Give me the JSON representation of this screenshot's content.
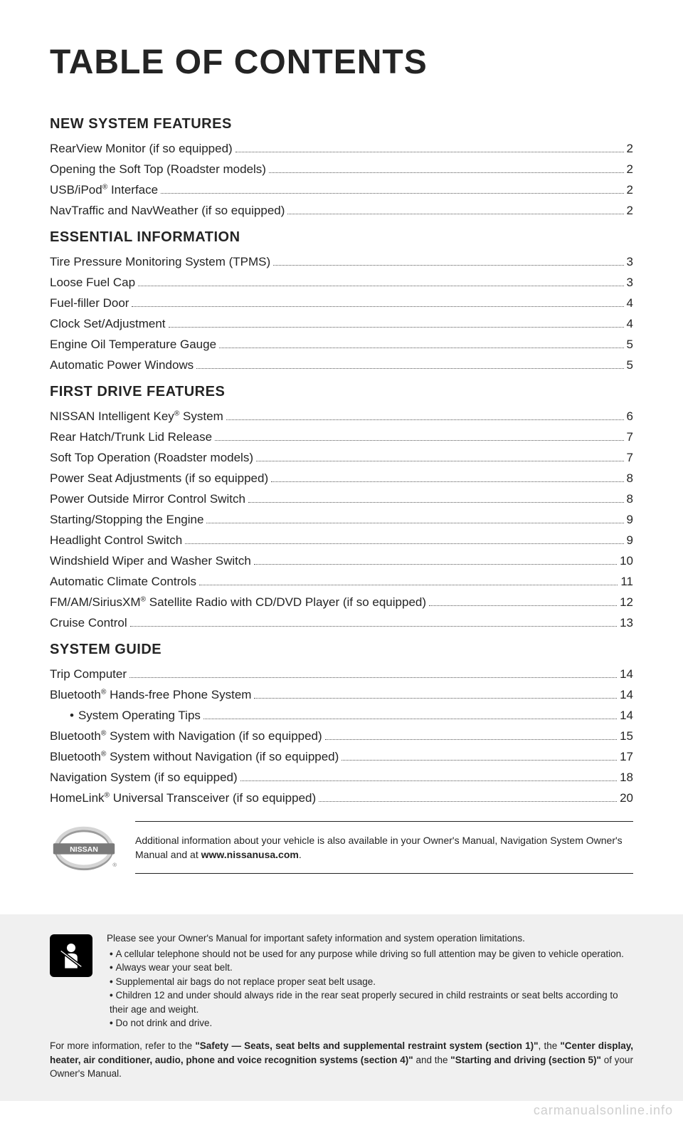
{
  "title": "TABLE OF CONTENTS",
  "sections": [
    {
      "heading": "NEW SYSTEM FEATURES",
      "entries": [
        {
          "label": "RearView Monitor (if so equipped)",
          "page": "2",
          "sub": false,
          "reg": false
        },
        {
          "label": "Opening the Soft Top (Roadster models)",
          "page": "2",
          "sub": false,
          "reg": false
        },
        {
          "label": "USB/iPod® Interface",
          "page": "2",
          "sub": false,
          "reg": true
        },
        {
          "label": "NavTraffic and NavWeather (if so equipped)",
          "page": "2",
          "sub": false,
          "reg": false
        }
      ]
    },
    {
      "heading": "ESSENTIAL INFORMATION",
      "entries": [
        {
          "label": "Tire Pressure Monitoring System (TPMS)",
          "page": "3",
          "sub": false,
          "reg": false
        },
        {
          "label": "Loose Fuel Cap",
          "page": "3",
          "sub": false,
          "reg": false
        },
        {
          "label": "Fuel-filler Door",
          "page": "4",
          "sub": false,
          "reg": false
        },
        {
          "label": "Clock Set/Adjustment",
          "page": "4",
          "sub": false,
          "reg": false
        },
        {
          "label": "Engine Oil Temperature Gauge",
          "page": "5",
          "sub": false,
          "reg": false
        },
        {
          "label": "Automatic Power Windows",
          "page": "5",
          "sub": false,
          "reg": false
        }
      ]
    },
    {
      "heading": "FIRST DRIVE FEATURES",
      "entries": [
        {
          "label": "NISSAN Intelligent Key® System",
          "page": "6",
          "sub": false,
          "reg": true
        },
        {
          "label": "Rear Hatch/Trunk Lid Release",
          "page": "7",
          "sub": false,
          "reg": false
        },
        {
          "label": "Soft Top Operation (Roadster models)",
          "page": "7",
          "sub": false,
          "reg": false
        },
        {
          "label": "Power Seat Adjustments (if so equipped)",
          "page": "8",
          "sub": false,
          "reg": false
        },
        {
          "label": "Power Outside Mirror Control Switch",
          "page": "8",
          "sub": false,
          "reg": false
        },
        {
          "label": "Starting/Stopping the Engine",
          "page": "9",
          "sub": false,
          "reg": false
        },
        {
          "label": "Headlight Control Switch",
          "page": "9",
          "sub": false,
          "reg": false
        },
        {
          "label": "Windshield Wiper and Washer Switch",
          "page": "10",
          "sub": false,
          "reg": false
        },
        {
          "label": "Automatic Climate Controls",
          "page": "11",
          "sub": false,
          "reg": false
        },
        {
          "label": "FM/AM/SiriusXM® Satellite Radio with CD/DVD Player (if so equipped)",
          "page": "12",
          "sub": false,
          "reg": true
        },
        {
          "label": "Cruise Control",
          "page": "13",
          "sub": false,
          "reg": false
        }
      ]
    },
    {
      "heading": "SYSTEM GUIDE",
      "entries": [
        {
          "label": "Trip Computer",
          "page": "14",
          "sub": false,
          "reg": false
        },
        {
          "label": "Bluetooth® Hands-free Phone System",
          "page": "14",
          "sub": false,
          "reg": true
        },
        {
          "label": "System Operating Tips",
          "page": "14",
          "sub": true,
          "reg": false
        },
        {
          "label": "Bluetooth® System with Navigation (if so equipped)",
          "page": "15",
          "sub": false,
          "reg": true
        },
        {
          "label": "Bluetooth® System without Navigation (if so equipped)",
          "page": "17",
          "sub": false,
          "reg": true
        },
        {
          "label": "Navigation System (if so equipped)",
          "page": "18",
          "sub": false,
          "reg": false
        },
        {
          "label": "HomeLink® Universal Transceiver (if so equipped)",
          "page": "20",
          "sub": false,
          "reg": true
        }
      ]
    }
  ],
  "info": {
    "text_pre": "Additional information about your vehicle is also available in your Owner's Manual, Navigation System Owner's Manual and at ",
    "text_bold": "www.nissanusa.com",
    "text_post": "."
  },
  "safety": {
    "intro": "Please see your Owner's Manual for important safety information and system operation limitations.",
    "bullets": [
      "A cellular telephone should not be used for any purpose while driving so full attention may be given to vehicle operation.",
      "Always wear your seat belt.",
      "Supplemental air bags do not replace proper seat belt usage.",
      "Children 12 and under should always ride in the rear seat properly secured in child restraints or seat belts according to their age and weight.",
      "Do not drink and drive."
    ],
    "footer_pre": "For more information, refer to the ",
    "footer_b1": "\"Safety — Seats, seat belts and supplemental restraint system (section 1)\"",
    "footer_mid1": ", the ",
    "footer_b2": "\"Center display, heater, air conditioner, audio, phone and voice recognition systems (section 4)\"",
    "footer_mid2": " and the ",
    "footer_b3": "\"Starting and driving (section 5)\"",
    "footer_post": " of your Owner's Manual."
  },
  "watermark": "carmanualsonline.info",
  "colors": {
    "text": "#242424",
    "leader": "#555555",
    "safety_bg": "#f0f0f0",
    "watermark": "#cfcfcf"
  }
}
